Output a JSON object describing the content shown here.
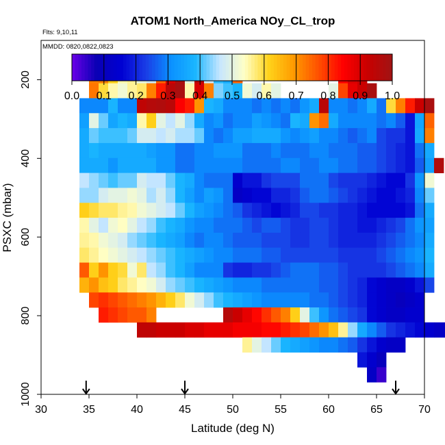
{
  "title": "ATOM1 North_America NOy_CL_trop",
  "flights_label": "Flts: 9,10,11",
  "dates_label": "MMDD: 0820,0822,0823",
  "chart_data": {
    "type": "heatmap",
    "title": "ATOM1 North_America NOy_CL_trop",
    "xlabel": "Latitude (deg N)",
    "ylabel": "PSXC (mbar)",
    "xlim": [
      30,
      70
    ],
    "ylim": [
      1000,
      100
    ],
    "x_ticks": [
      "30",
      "35",
      "40",
      "45",
      "50",
      "55",
      "60",
      "65",
      "70"
    ],
    "y_ticks": [
      "200",
      "400",
      "600",
      "800",
      "1000"
    ],
    "colorbar": {
      "range": [
        0,
        1
      ],
      "ticks": [
        "0.0",
        "0.1",
        "0.2",
        "0.3",
        "0.4",
        "0.5",
        "0.6",
        "0.7",
        "0.8",
        "0.9",
        "1.0"
      ],
      "colors": [
        "#6a00e8",
        "#0a00b4",
        "#0000d2",
        "#1a3ce6",
        "#0a90ff",
        "#1ab6ff",
        "#c6e6ff",
        "#ffffc6",
        "#ffd21a",
        "#ff9a00",
        "#ff5000",
        "#ff0000",
        "#c80000",
        "#a01414"
      ]
    },
    "cell_width_deg": 1,
    "cell_height_mbar": 38,
    "rows": [
      {
        "p": 190,
        "lat_start": 35,
        "values": [
          0.72,
          0.72,
          0.62,
          0.55,
          0.56,
          0.5,
          0.47,
          0.75,
          0.9,
          0.98,
          0.5,
          0.95,
          0.47,
          0.39,
          0.36,
          0.75
        ],
        "extra": [
          {
            "lat": 61,
            "values": [
              0.85,
              0.9,
              0.92
            ]
          }
        ]
      },
      {
        "p": 228,
        "lat_start": 35,
        "values": [
          0.73,
          0.6,
          0.55,
          0.52,
          0.56,
          0.58,
          0.72,
          0.82,
          0.95,
          0.98,
          0.55,
          0.9,
          0.72,
          0.43,
          0.4,
          0.38,
          0.52,
          0.48,
          0.55,
          0.5
        ],
        "extra": [
          {
            "lat": 60,
            "values": [
              0.5,
              0.78,
              0.88,
              0.92,
              0.98
            ]
          }
        ]
      },
      {
        "p": 266,
        "lat_start": 34,
        "values": [
          0.3,
          0.3,
          0.3,
          0.38,
          0.3,
          0.3,
          0.94,
          0.96,
          0.97,
          0.95,
          0.85,
          0.82,
          0.7,
          0.38,
          0.36,
          0.3,
          0.3,
          0.3,
          0.28,
          0.3,
          0.28,
          0.3,
          0.28,
          0.32,
          0.36,
          0.95,
          0.3,
          0.3,
          0.28,
          0.3,
          0.36,
          0.28,
          0.6,
          0.72,
          0.82,
          0.92,
          0.98
        ]
      },
      {
        "p": 304,
        "lat_start": 34,
        "values": [
          0.34,
          0.5,
          0.42,
          0.35,
          0.38,
          0.36,
          0.55,
          0.62,
          0.5,
          0.46,
          0.5,
          0.44,
          0.36,
          0.3,
          0.32,
          0.28,
          0.3,
          0.3,
          0.34,
          0.32,
          0.3,
          0.28,
          0.38,
          0.36,
          0.7,
          0.74,
          0.36,
          0.3,
          0.3,
          0.3,
          0.3,
          0.28,
          0.3,
          0.26,
          0.18,
          0.35,
          0.75
        ]
      },
      {
        "p": 342,
        "lat_start": 34,
        "values": [
          0.36,
          0.42,
          0.4,
          0.4,
          0.4,
          0.42,
          0.48,
          0.48,
          0.46,
          0.48,
          0.45,
          0.45,
          0.42,
          0.3,
          0.28,
          0.3,
          0.34,
          0.34,
          0.36,
          0.36,
          0.36,
          0.32,
          0.3,
          0.32,
          0.34,
          0.3,
          0.3,
          0.28,
          0.26,
          0.28,
          0.3,
          0.24,
          0.22,
          0.22,
          0.18,
          0.36,
          0.72
        ]
      },
      {
        "p": 380,
        "lat_start": 34,
        "values": [
          0.36,
          0.38,
          0.36,
          0.36,
          0.36,
          0.36,
          0.36,
          0.34,
          0.32,
          0.32,
          0.28,
          0.28,
          0.3,
          0.3,
          0.32,
          0.32,
          0.32,
          0.28,
          0.28,
          0.28,
          0.3,
          0.28,
          0.28,
          0.28,
          0.3,
          0.3,
          0.28,
          0.28,
          0.28,
          0.26,
          0.26,
          0.24,
          0.22,
          0.2,
          0.18,
          0.28,
          0.36
        ]
      },
      {
        "p": 418,
        "lat_start": 34,
        "values": [
          0.36,
          0.36,
          0.36,
          0.32,
          0.36,
          0.36,
          0.36,
          0.36,
          0.32,
          0.32,
          0.28,
          0.28,
          0.3,
          0.3,
          0.3,
          0.3,
          0.3,
          0.28,
          0.28,
          0.28,
          0.28,
          0.3,
          0.3,
          0.28,
          0.28,
          0.3,
          0.3,
          0.28,
          0.28,
          0.26,
          0.26,
          0.24,
          0.22,
          0.2,
          0.18,
          0.26,
          0.34,
          0.97
        ]
      },
      {
        "p": 456,
        "lat_start": 34,
        "values": [
          0.46,
          0.44,
          0.42,
          0.4,
          0.42,
          0.42,
          0.48,
          0.46,
          0.46,
          0.42,
          0.38,
          0.36,
          0.3,
          0.28,
          0.28,
          0.28,
          0.14,
          0.18,
          0.18,
          0.22,
          0.24,
          0.24,
          0.24,
          0.28,
          0.28,
          0.28,
          0.24,
          0.22,
          0.22,
          0.22,
          0.2,
          0.18,
          0.16,
          0.16,
          0.22,
          0.32,
          0.52
        ]
      },
      {
        "p": 494,
        "lat_start": 34,
        "values": [
          0.44,
          0.44,
          0.48,
          0.5,
          0.5,
          0.52,
          0.5,
          0.45,
          0.48,
          0.44,
          0.38,
          0.34,
          0.3,
          0.34,
          0.32,
          0.28,
          0.12,
          0.14,
          0.16,
          0.16,
          0.2,
          0.2,
          0.22,
          0.26,
          0.28,
          0.28,
          0.26,
          0.24,
          0.22,
          0.2,
          0.18,
          0.16,
          0.16,
          0.18,
          0.2,
          0.3,
          0.42
        ]
      },
      {
        "p": 532,
        "lat_start": 34,
        "values": [
          0.62,
          0.6,
          0.58,
          0.58,
          0.56,
          0.55,
          0.52,
          0.5,
          0.48,
          0.46,
          0.42,
          0.38,
          0.34,
          0.32,
          0.3,
          0.28,
          0.26,
          0.22,
          0.2,
          0.18,
          0.16,
          0.18,
          0.2,
          0.24,
          0.24,
          0.22,
          0.22,
          0.2,
          0.2,
          0.18,
          0.16,
          0.16,
          0.16,
          0.16,
          0.18,
          0.28,
          0.36
        ]
      },
      {
        "p": 570,
        "lat_start": 34,
        "values": [
          0.55,
          0.5,
          0.46,
          0.52,
          0.54,
          0.5,
          0.46,
          0.44,
          0.4,
          0.38,
          0.36,
          0.32,
          0.3,
          0.3,
          0.28,
          0.28,
          0.28,
          0.26,
          0.24,
          0.26,
          0.26,
          0.24,
          0.22,
          0.22,
          0.24,
          0.24,
          0.22,
          0.2,
          0.2,
          0.18,
          0.18,
          0.2,
          0.22,
          0.24,
          0.28,
          0.32,
          0.34
        ]
      },
      {
        "p": 608,
        "lat_start": 34,
        "values": [
          0.56,
          0.55,
          0.52,
          0.5,
          0.48,
          0.44,
          0.42,
          0.4,
          0.38,
          0.36,
          0.34,
          0.3,
          0.28,
          0.3,
          0.3,
          0.28,
          0.26,
          0.26,
          0.26,
          0.24,
          0.24,
          0.24,
          0.22,
          0.22,
          0.24,
          0.24,
          0.22,
          0.2,
          0.2,
          0.2,
          0.2,
          0.22,
          0.24,
          0.26,
          0.28,
          0.3,
          0.36
        ]
      },
      {
        "p": 646,
        "lat_start": 34,
        "values": [
          0.58,
          0.56,
          0.54,
          0.52,
          0.5,
          0.48,
          0.46,
          0.44,
          0.42,
          0.4,
          0.38,
          0.36,
          0.34,
          0.32,
          0.3,
          0.3,
          0.28,
          0.28,
          0.28,
          0.26,
          0.26,
          0.24,
          0.24,
          0.24,
          0.24,
          0.24,
          0.24,
          0.22,
          0.22,
          0.22,
          0.22,
          0.24,
          0.26,
          0.28,
          0.3,
          0.32,
          0.38
        ]
      },
      {
        "p": 684,
        "lat_start": 34,
        "values": [
          0.76,
          0.62,
          0.7,
          0.62,
          0.6,
          0.52,
          0.58,
          0.46,
          0.44,
          0.4,
          0.38,
          0.34,
          0.3,
          0.3,
          0.3,
          0.22,
          0.2,
          0.2,
          0.22,
          0.22,
          0.24,
          0.26,
          0.28,
          0.28,
          0.28,
          0.26,
          0.26,
          0.24,
          0.22,
          0.22,
          0.22,
          0.22,
          0.24,
          0.26,
          0.28,
          0.3,
          0.36
        ]
      },
      {
        "p": 722,
        "lat_start": 34,
        "values": [
          0.66,
          0.7,
          0.64,
          0.62,
          0.58,
          0.56,
          0.54,
          0.52,
          0.48,
          0.44,
          0.42,
          0.4,
          0.38,
          0.36,
          0.34,
          0.32,
          0.3,
          0.3,
          0.3,
          0.28,
          0.28,
          0.28,
          0.28,
          0.28,
          0.28,
          0.26,
          0.26,
          0.24,
          0.22,
          0.2,
          0.16,
          0.14,
          0.12,
          0.12,
          0.14,
          0.18,
          0.24
        ]
      },
      {
        "p": 760,
        "lat_start": 35,
        "values": [
          0.78,
          0.8,
          0.78,
          0.76,
          0.74,
          0.72,
          0.7,
          0.66,
          0.62,
          0.58,
          0.52,
          0.48,
          0.44,
          0.4,
          0.38,
          0.36,
          0.34,
          0.32,
          0.3,
          0.3,
          0.3,
          0.3,
          0.3,
          0.28,
          0.28,
          0.26,
          0.24,
          0.22,
          0.2,
          0.16,
          0.14,
          0.12,
          0.1,
          0.12,
          0.14
        ]
      },
      {
        "p": 798,
        "lat_start": 36,
        "values": [
          0.82,
          0.8,
          0.78,
          0.76,
          0.76,
          0.72
        ],
        "extra": [
          {
            "lat": 49,
            "values": [
              0.96,
              0.92,
              0.88,
              0.84,
              0.8,
              0.76,
              0.72,
              0.62,
              0.5,
              0.4,
              0.32,
              0.28,
              0.26,
              0.24,
              0.22,
              0.16,
              0.14,
              0.12,
              0.12,
              0.14,
              0.14
            ]
          }
        ]
      },
      {
        "p": 836,
        "lat_start": 40,
        "values": [
          0.94,
          0.94,
          0.92,
          0.92,
          0.92,
          0.9,
          0.9,
          0.88,
          0.88,
          0.88,
          0.86,
          0.86,
          0.86,
          0.84,
          0.84,
          0.82,
          0.8,
          0.78,
          0.74,
          0.7,
          0.64,
          0.56,
          0.44,
          0.36,
          0.3,
          0.26,
          0.22,
          0.2,
          0.18,
          0.16,
          0.14,
          0.12,
          0.12,
          0.14,
          0.14,
          0.16
        ]
      },
      {
        "p": 874,
        "lat_start": 51,
        "values": [
          0.56,
          0.5,
          0.46,
          0.42,
          0.38,
          0.36,
          0.34,
          0.32,
          0.3,
          0.3,
          0.28,
          0.26,
          0.22,
          0.18,
          0.14,
          0.12,
          0.12
        ]
      },
      {
        "p": 912,
        "lat_start": 63,
        "values": [
          0.18,
          0.14,
          0.1
        ]
      },
      {
        "p": 950,
        "lat_start": 64,
        "values": [
          0.12,
          0.04
        ]
      }
    ],
    "flight_markers": [
      34.7,
      45,
      67
    ]
  }
}
